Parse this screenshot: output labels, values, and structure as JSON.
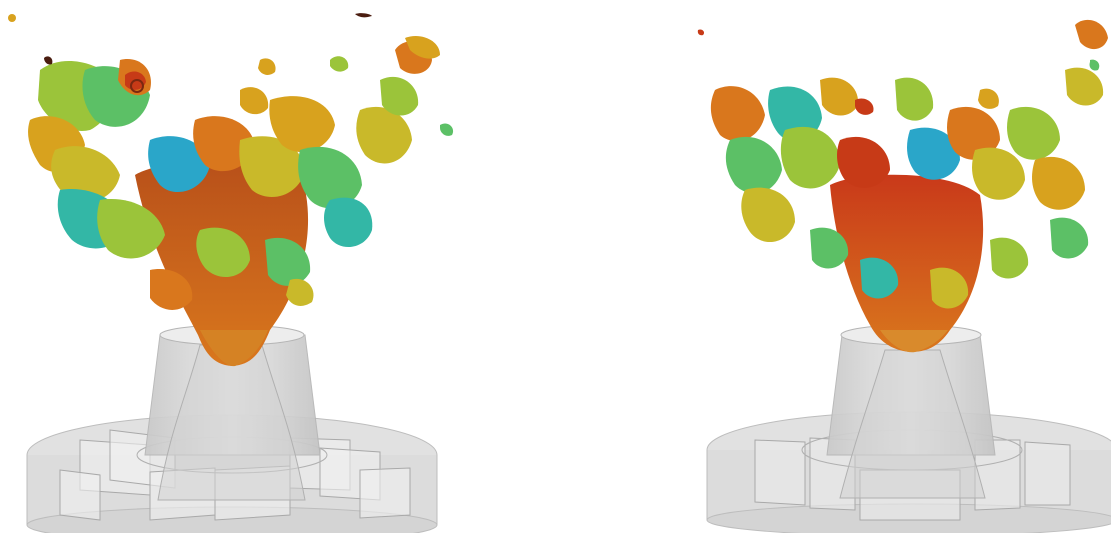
{
  "figure": {
    "panels": [
      {
        "side": "left",
        "nozzle_color": "#d9d9d9",
        "plume_core_color": "#c8561a"
      },
      {
        "side": "right",
        "nozzle_color": "#d9d9d9",
        "plume_core_color": "#c9391a"
      }
    ],
    "palette": {
      "red": "#c73a17",
      "orange": "#d9771d",
      "amber": "#d8a21e",
      "yellow": "#c9b92a",
      "lime": "#9bc43a",
      "green": "#5cc066",
      "teal": "#33b7a6",
      "cyan": "#2aa6c9",
      "gray": "#cfcfcf"
    }
  }
}
